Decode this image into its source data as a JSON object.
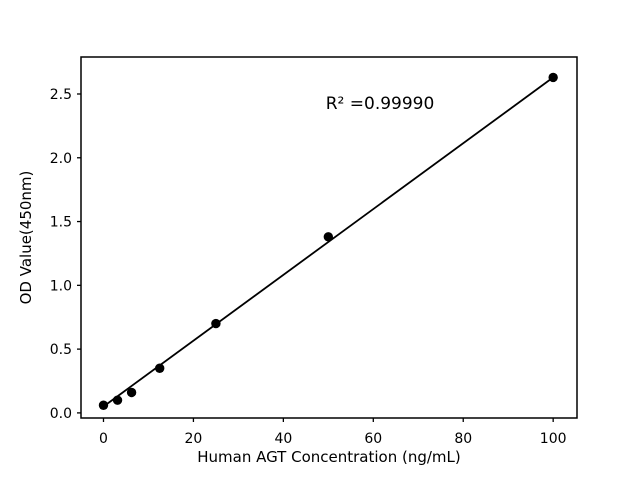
{
  "figure": {
    "background": "#ffffff",
    "text_color": "#000000"
  },
  "chart_data": {
    "type": "scatter",
    "title": "",
    "xlabel": "Human AGT Concentration (ng/mL)",
    "ylabel": "OD Value(450nm)",
    "x": [
      0,
      3.125,
      6.25,
      12.5,
      25,
      50,
      100
    ],
    "y": [
      0.06,
      0.1,
      0.16,
      0.35,
      0.7,
      1.38,
      2.63
    ],
    "x_ticks": [
      0,
      20,
      40,
      60,
      80,
      100
    ],
    "x_tick_labels": [
      "0",
      "20",
      "40",
      "60",
      "80",
      "100"
    ],
    "y_ticks": [
      0.0,
      0.5,
      1.0,
      1.5,
      2.0,
      2.5
    ],
    "y_tick_labels": [
      "0.0",
      "0.5",
      "1.0",
      "1.5",
      "2.0",
      "2.5"
    ],
    "xlim": [
      -5,
      105.3
    ],
    "ylim": [
      -0.04,
      2.79
    ],
    "trend_line": {
      "x_start": 0,
      "y_start": 0.05,
      "x_end": 100,
      "y_end": 2.63
    },
    "annotation": {
      "text": "R² =0.99990",
      "x": 61.5,
      "y": 2.43
    },
    "r_squared": "0.99990",
    "marker_color": "#000000",
    "line_color": "#000000",
    "axis_color": "#000000",
    "grid": false,
    "legend": "none"
  }
}
